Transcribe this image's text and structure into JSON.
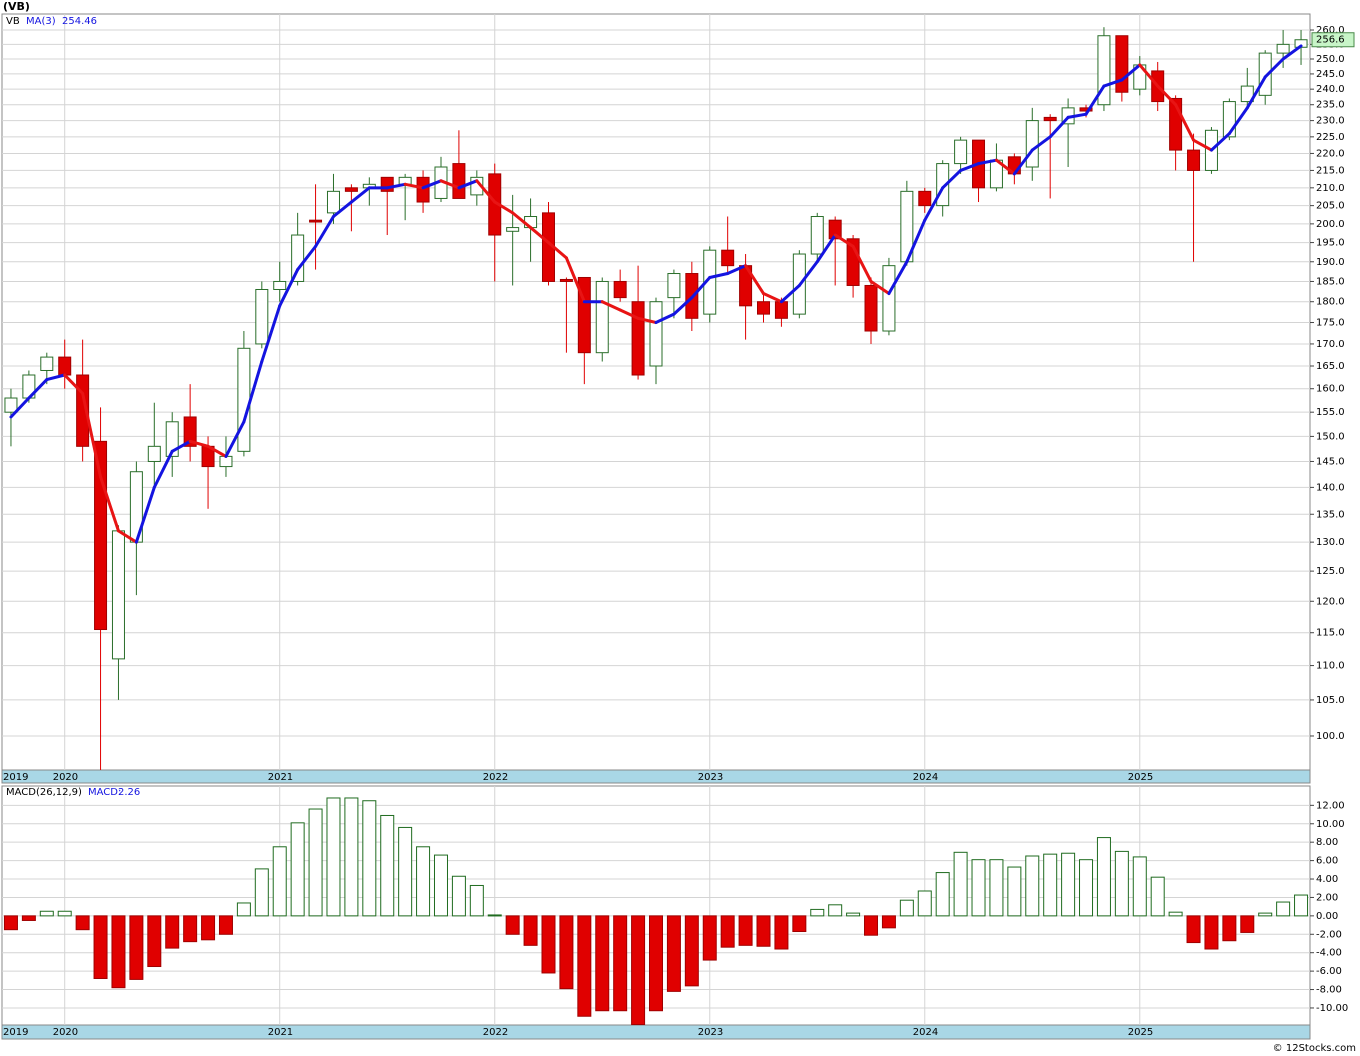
{
  "chart_data": [
    {
      "type": "candlestick",
      "title": "(VB)",
      "symbol": "VB",
      "log_scale": true,
      "grid": true,
      "up_color": "#2a6e2a",
      "down_color": "#e00000",
      "categories": [
        "2019",
        null,
        null,
        "2020",
        null,
        null,
        null,
        null,
        null,
        null,
        null,
        null,
        null,
        null,
        null,
        "2021",
        null,
        null,
        null,
        null,
        null,
        null,
        null,
        null,
        null,
        null,
        null,
        "2022",
        null,
        null,
        null,
        null,
        null,
        null,
        null,
        null,
        null,
        null,
        null,
        "2023",
        null,
        null,
        null,
        null,
        null,
        null,
        null,
        null,
        null,
        null,
        null,
        "2024",
        null,
        null,
        null,
        null,
        null,
        null,
        null,
        null,
        null,
        null,
        null,
        "2025",
        null,
        null,
        null,
        null,
        null,
        null,
        null,
        null,
        null
      ],
      "open": [
        155,
        158,
        164,
        167,
        163,
        149,
        111,
        130,
        145,
        146,
        154,
        148,
        144,
        147,
        170,
        183,
        185,
        201,
        203,
        210,
        210,
        213,
        211,
        213,
        207,
        217,
        208,
        214,
        198,
        199,
        203,
        185.5,
        186,
        168,
        185,
        180,
        165,
        181,
        187,
        177,
        193,
        189,
        180,
        180,
        177,
        192,
        201,
        196,
        184,
        173,
        190,
        209,
        205,
        217,
        224,
        210,
        219,
        216,
        231,
        229,
        234,
        235,
        258,
        240,
        246,
        237,
        221,
        215,
        225,
        236,
        238,
        252,
        254
      ],
      "high": [
        160,
        164,
        168,
        171,
        171,
        156,
        133,
        145,
        157,
        155,
        161,
        150,
        150,
        173,
        185,
        190,
        203,
        211,
        214,
        211,
        213,
        213,
        214,
        215,
        219,
        227,
        215,
        217,
        208,
        207,
        206,
        186,
        186,
        186,
        188,
        189,
        181,
        188,
        190,
        194,
        202,
        192,
        182,
        181,
        193,
        203,
        202,
        197,
        186,
        191,
        212,
        210,
        218,
        225,
        224,
        223,
        220,
        234,
        232,
        237,
        235,
        261,
        258,
        251,
        249,
        238,
        226,
        228,
        237,
        247,
        253,
        260,
        260
      ],
      "low": [
        148,
        157,
        161,
        160,
        145,
        95.5,
        105,
        121,
        140,
        142,
        145,
        136,
        142,
        146,
        169,
        180,
        184,
        188,
        200,
        198,
        205,
        197,
        201,
        203,
        206,
        207,
        205,
        185,
        184,
        190,
        184,
        168,
        161,
        166,
        180,
        162,
        161,
        176,
        173,
        175,
        187,
        171,
        175,
        174,
        176,
        190,
        184,
        181,
        170,
        172,
        189,
        203,
        202,
        214,
        206,
        209,
        211,
        212,
        207,
        216,
        231,
        233,
        236,
        238,
        233,
        215,
        190,
        214,
        224,
        234,
        235,
        247,
        248
      ],
      "close": [
        158,
        163,
        167,
        163,
        148,
        115.5,
        132,
        143,
        148,
        153,
        148,
        144,
        146,
        169,
        183,
        185,
        197,
        200.5,
        209,
        209,
        211,
        209,
        213,
        206,
        216,
        207,
        213,
        197,
        199,
        202,
        185,
        185,
        168,
        185,
        181,
        163,
        180,
        187,
        176,
        193,
        189,
        179,
        177,
        176,
        192,
        202,
        196,
        184,
        173,
        189,
        209,
        205,
        217,
        224,
        210,
        218,
        214,
        230,
        230,
        234,
        233,
        258,
        239,
        248,
        236,
        221,
        215,
        227,
        236,
        241,
        252,
        255,
        256.6
      ],
      "overlay": {
        "name": "MA(3)",
        "up_color": "#1414e0",
        "down_color": "#e81414",
        "values": [
          154,
          158,
          162,
          163,
          159,
          142,
          132,
          130,
          140,
          147,
          149,
          148,
          146,
          153,
          166,
          179,
          188,
          194,
          202,
          206,
          210,
          210,
          211,
          210,
          212,
          210,
          212,
          206,
          203,
          199,
          195,
          191,
          180,
          180,
          178,
          176,
          175,
          177,
          181,
          186,
          187,
          189,
          182,
          180,
          184,
          190,
          197,
          194,
          185,
          182,
          190,
          201,
          210,
          215,
          217,
          218,
          214,
          221,
          225,
          231,
          232,
          241,
          243,
          248,
          241,
          235,
          224,
          221,
          226,
          234,
          244,
          250,
          254.46
        ]
      },
      "ylim": [
        95.5,
        265.7
      ],
      "yticks": [
        {
          "value": 100,
          "label": "100.0"
        },
        {
          "value": 105,
          "label": "105.0"
        },
        {
          "value": 110,
          "label": "110.0"
        },
        {
          "value": 115,
          "label": "115.0"
        },
        {
          "value": 120,
          "label": "120.0"
        },
        {
          "value": 125,
          "label": "125.0"
        },
        {
          "value": 130,
          "label": "130.0"
        },
        {
          "value": 135,
          "label": "135.0"
        },
        {
          "value": 140,
          "label": "140.0"
        },
        {
          "value": 145,
          "label": "145.0"
        },
        {
          "value": 150,
          "label": "150.0"
        },
        {
          "value": 155,
          "label": "155.0"
        },
        {
          "value": 160,
          "label": "160.0"
        },
        {
          "value": 165,
          "label": "165.0"
        },
        {
          "value": 170,
          "label": "170.0"
        },
        {
          "value": 175,
          "label": "175.0"
        },
        {
          "value": 180,
          "label": "180.0"
        },
        {
          "value": 185,
          "label": "185.0"
        },
        {
          "value": 190,
          "label": "190.0"
        },
        {
          "value": 195,
          "label": "195.0"
        },
        {
          "value": 200,
          "label": "200.0"
        },
        {
          "value": 205,
          "label": "205.0"
        },
        {
          "value": 210,
          "label": "210.0"
        },
        {
          "value": 215,
          "label": "215.0"
        },
        {
          "value": 220,
          "label": "220.0"
        },
        {
          "value": 225,
          "label": "225.0"
        },
        {
          "value": 230,
          "label": "230.0"
        },
        {
          "value": 235,
          "label": "235.0"
        },
        {
          "value": 240,
          "label": "240.0"
        },
        {
          "value": 245,
          "label": "245.0"
        },
        {
          "value": 250,
          "label": "250.0"
        },
        {
          "value": 255,
          "label": "255.0"
        },
        {
          "value": 260,
          "label": "260.0"
        }
      ]
    },
    {
      "type": "bar",
      "title": "MACD(26,12,9)",
      "value_name": "MACD:",
      "grid": true,
      "up_color": "#1f6b1f",
      "down_color": "#e00000",
      "values": [
        -1.5,
        -0.5,
        0.5,
        0.5,
        -1.5,
        -6.8,
        -7.8,
        -6.9,
        -5.5,
        -3.5,
        -2.8,
        -2.6,
        -2.0,
        1.4,
        5.1,
        7.5,
        10.1,
        11.6,
        12.8,
        12.8,
        12.5,
        10.9,
        9.6,
        7.5,
        6.6,
        4.3,
        3.3,
        0.1,
        -2.0,
        -3.2,
        -6.2,
        -7.9,
        -10.9,
        -10.3,
        -10.3,
        -11.8,
        -10.3,
        -8.2,
        -7.6,
        -4.8,
        -3.4,
        -3.2,
        -3.3,
        -3.6,
        -1.7,
        0.7,
        1.2,
        0.3,
        -2.1,
        -1.3,
        1.7,
        2.7,
        4.7,
        6.9,
        6.1,
        6.1,
        5.3,
        6.5,
        6.7,
        6.8,
        6.1,
        8.5,
        7.0,
        6.4,
        4.2,
        0.4,
        -2.9,
        -3.6,
        -2.7,
        -1.8,
        0.3,
        1.5,
        2.26
      ],
      "ylim": [
        -11.85,
        14.1
      ],
      "yticks": [
        {
          "value": 12,
          "label": "12.00"
        },
        {
          "value": 10,
          "label": "10.00"
        },
        {
          "value": 8,
          "label": "8.00"
        },
        {
          "value": 6,
          "label": "6.00"
        },
        {
          "value": 4,
          "label": "4.00"
        },
        {
          "value": 2,
          "label": "2.00"
        },
        {
          "value": 0,
          "label": "0.00"
        },
        {
          "value": -2,
          "label": "-2.00"
        },
        {
          "value": -4,
          "label": "-4.00"
        },
        {
          "value": -6,
          "label": "-6.00"
        },
        {
          "value": -8,
          "label": "-8.00"
        },
        {
          "value": -10,
          "label": "-10.00"
        }
      ]
    }
  ],
  "footer": "© 12Stocks.com"
}
